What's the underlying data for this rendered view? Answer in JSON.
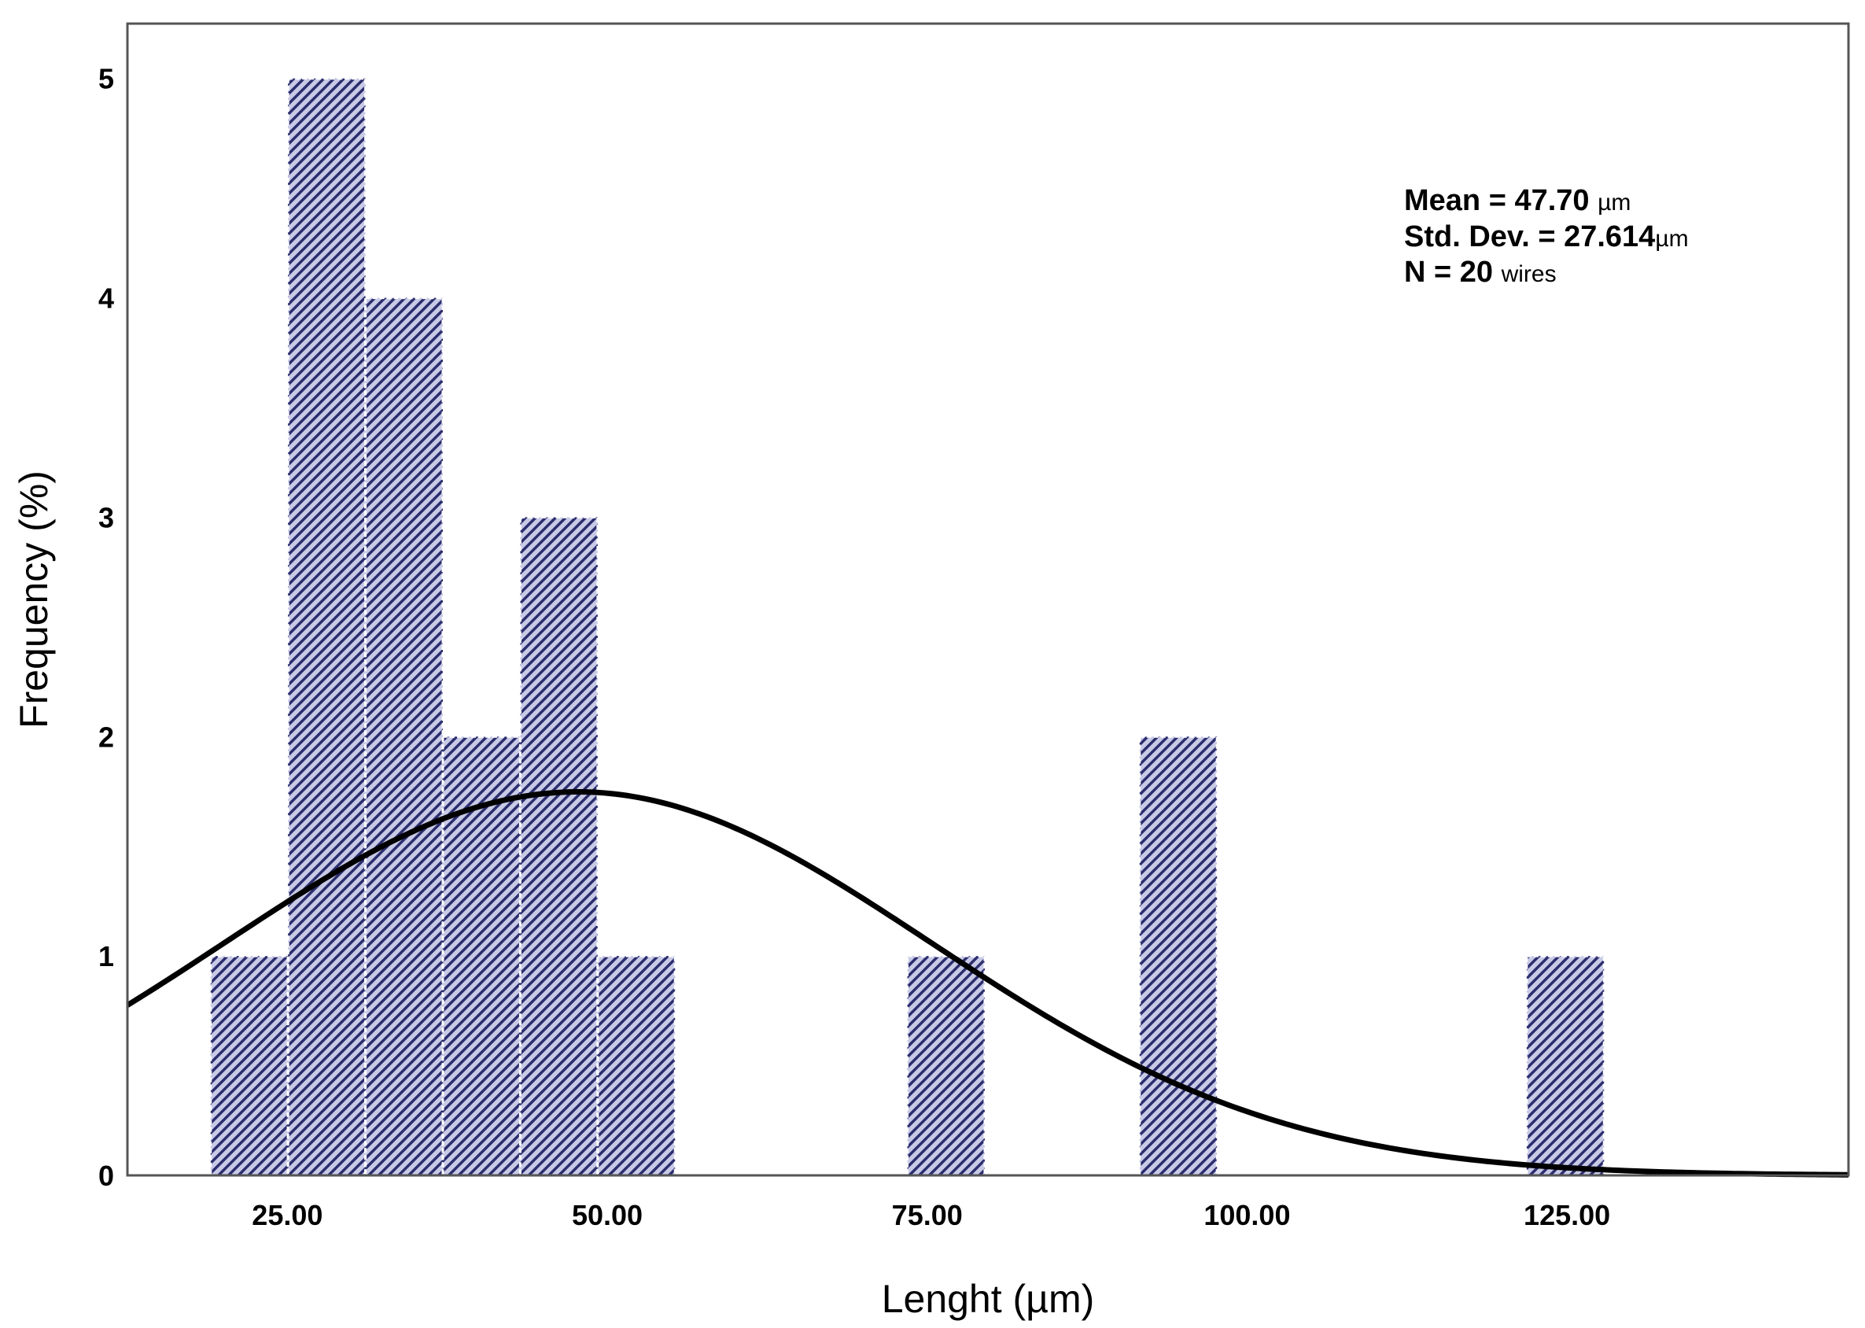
{
  "chart_data": {
    "type": "bar",
    "title": "",
    "xlabel": "Lenght (µm)",
    "ylabel": "Frequency (%)",
    "xlim": [
      12.5,
      147.0
    ],
    "ylim": [
      0,
      5.25
    ],
    "bin_width": 6.05,
    "bins": [
      {
        "x0": 19.0,
        "x1": 25.05,
        "value": 1
      },
      {
        "x0": 25.05,
        "x1": 31.1,
        "value": 5
      },
      {
        "x0": 31.1,
        "x1": 37.15,
        "value": 4
      },
      {
        "x0": 37.15,
        "x1": 43.2,
        "value": 2
      },
      {
        "x0": 43.2,
        "x1": 49.25,
        "value": 3
      },
      {
        "x0": 49.25,
        "x1": 55.3,
        "value": 1
      },
      {
        "x0": 73.45,
        "x1": 79.5,
        "value": 1
      },
      {
        "x0": 91.6,
        "x1": 97.65,
        "value": 2
      },
      {
        "x0": 121.85,
        "x1": 127.9,
        "value": 1
      }
    ],
    "x_ticks": [
      {
        "value": 25,
        "label": "25.00"
      },
      {
        "value": 50,
        "label": "50.00"
      },
      {
        "value": 75,
        "label": "75.00"
      },
      {
        "value": 100,
        "label": "100.00"
      },
      {
        "value": 125,
        "label": "125.00"
      }
    ],
    "y_ticks": [
      {
        "value": 0,
        "label": "0"
      },
      {
        "value": 1,
        "label": "1"
      },
      {
        "value": 2,
        "label": "2"
      },
      {
        "value": 3,
        "label": "3"
      },
      {
        "value": 4,
        "label": "4"
      },
      {
        "value": 5,
        "label": "5"
      }
    ],
    "normal_curve": {
      "mean": 47.7,
      "std_dev": 27.614,
      "n": 20,
      "bin_width": 6.05
    },
    "grid": false,
    "legend": "none",
    "annotations": {
      "placement": "top-right",
      "lines": [
        {
          "text": "Mean = 47.70 ",
          "unit": "µm"
        },
        {
          "text": "Std. Dev. = 27.614",
          "unit": "µm"
        },
        {
          "text": "N = 20 ",
          "unit": "wires"
        }
      ]
    },
    "colors": {
      "bar_fill": "#2b2d6e",
      "bar_hatch_light": "#c8cae6",
      "bar_separator": "#ffffff",
      "curve": "#000000",
      "frame": "#555555"
    }
  }
}
